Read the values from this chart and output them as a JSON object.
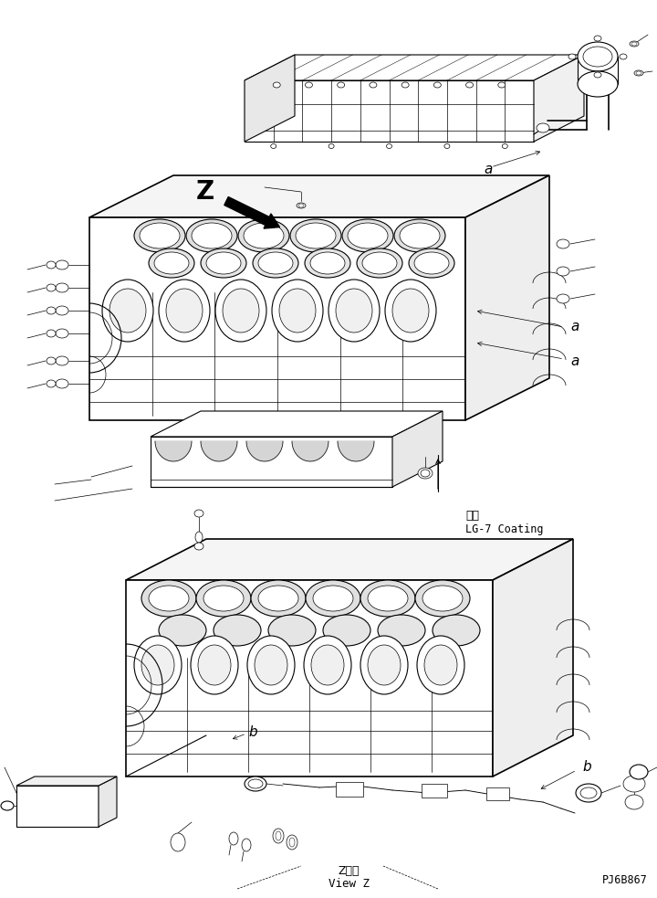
{
  "bg_color": "#ffffff",
  "fig_width": 7.2,
  "fig_height": 9.83,
  "dpi": 100,
  "line_color": "#000000",
  "text_color": "#000000",
  "part_number": "PJ6B867",
  "label_coating_jp": "塗布",
  "label_coating_en": "LG-7 Coating",
  "label_z_jp": "Z　視",
  "label_z_en": "View Z"
}
